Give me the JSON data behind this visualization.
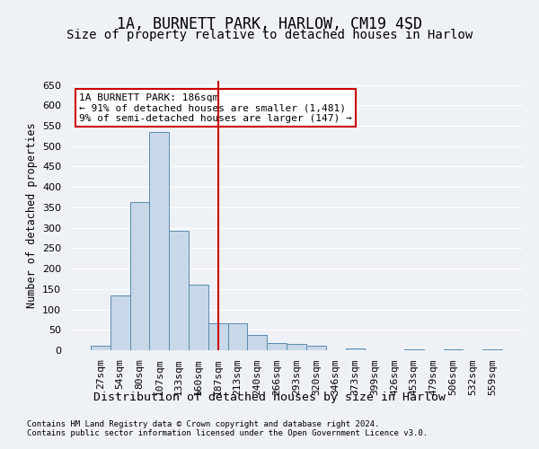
{
  "title": "1A, BURNETT PARK, HARLOW, CM19 4SD",
  "subtitle": "Size of property relative to detached houses in Harlow",
  "xlabel": "Distribution of detached houses by size in Harlow",
  "ylabel": "Number of detached properties",
  "categories": [
    "27sqm",
    "54sqm",
    "80sqm",
    "107sqm",
    "133sqm",
    "160sqm",
    "187sqm",
    "213sqm",
    "240sqm",
    "266sqm",
    "293sqm",
    "320sqm",
    "346sqm",
    "373sqm",
    "399sqm",
    "426sqm",
    "453sqm",
    "479sqm",
    "506sqm",
    "532sqm",
    "559sqm"
  ],
  "values": [
    10,
    135,
    362,
    535,
    292,
    160,
    65,
    65,
    38,
    18,
    15,
    10,
    0,
    4,
    0,
    0,
    3,
    0,
    3,
    0,
    3
  ],
  "bar_color": "#c8d8e8",
  "bar_edge_color": "#5a8ab0",
  "vline_x": 6,
  "vline_color": "#cc0000",
  "annotation_line1": "1A BURNETT PARK: 186sqm",
  "annotation_line2": "← 91% of detached houses are smaller (1,481)",
  "annotation_line3": "9% of semi-detached houses are larger (147) →",
  "annotation_box_color": "#cc0000",
  "ylim": [
    0,
    660
  ],
  "yticks": [
    0,
    50,
    100,
    150,
    200,
    250,
    300,
    350,
    400,
    450,
    500,
    550,
    600,
    650
  ],
  "title_fontsize": 12,
  "subtitle_fontsize": 10,
  "xlabel_fontsize": 9.5,
  "ylabel_fontsize": 8.5,
  "tick_fontsize": 8,
  "annot_fontsize": 8,
  "footer_line1": "Contains HM Land Registry data © Crown copyright and database right 2024.",
  "footer_line2": "Contains public sector information licensed under the Open Government Licence v3.0.",
  "background_color": "#eef2f7",
  "plot_background_color": "#eef2f7",
  "grid_color": "#ffffff"
}
